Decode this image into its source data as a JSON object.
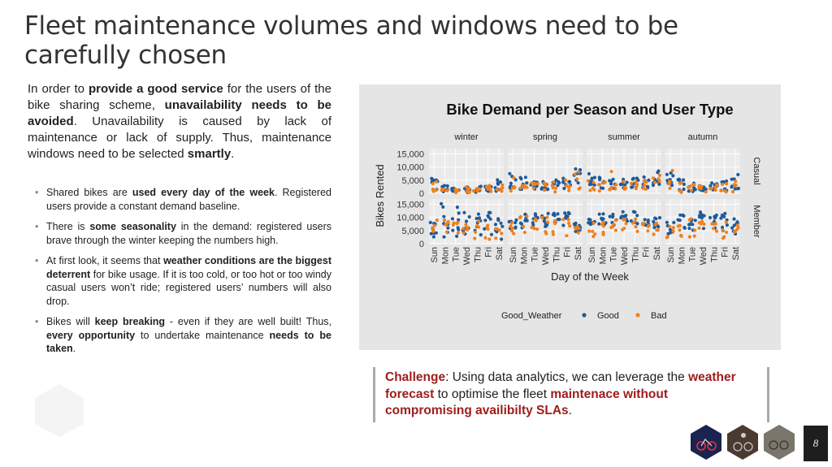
{
  "slide": {
    "title": "Fleet maintenance volumes and windows need to be carefully chosen",
    "page_number": "8"
  },
  "intro": {
    "p1": "In order to ",
    "b1": "provide a good service",
    "p2": " for the users of the bike sharing scheme, ",
    "b2": "unavailability needs to be avoided",
    "p3": ". Unavailability is caused by lack of maintenance or lack of supply. Thus, maintenance windows need to be selected ",
    "b3": "smartly",
    "p4": "."
  },
  "bullets": [
    {
      "t1": "Shared bikes are ",
      "b1": "used every day of the week",
      "t2": ". Registered users provide a constant demand baseline."
    },
    {
      "t1": "There is ",
      "b1": "some seasonality",
      "t2": " in the demand: registered users brave through the winter keeping the numbers high."
    },
    {
      "t1": "At first look, it seems that ",
      "b1": "weather conditions are the biggest deterrent",
      "t2": " for bike usage. If it is too cold, or too hot or too windy casual users won’t ride; registered users’ numbers will also drop."
    },
    {
      "t1": "Bikes will ",
      "b1": "keep breaking",
      "t2": " - even if they are well built! Thus, ",
      "b2": "every opportunity",
      "t3": " to undertake maintenance ",
      "b3": "needs to be taken",
      "t4": "."
    }
  ],
  "challenge": {
    "label": "Challenge",
    "t1": ": Using data analytics, we can leverage the ",
    "r1": "weather forecast",
    "t2": "  to optimise the fleet ",
    "r2": "maintenace without compromising availibilty SLAs",
    "t3": "."
  },
  "colors": {
    "good": "#1f5b99",
    "bad": "#f0801f",
    "panel_bg": "#e5e5e5",
    "facet_bg": "#ebebeb",
    "highlight": "#9e1c1c"
  },
  "icons": [
    "hexagon-decoration",
    "bike-thumbnail",
    "rider-thumbnail",
    "bicycles-thumbnail"
  ],
  "chart_data": {
    "type": "scatter",
    "title": "Bike Demand per Season and User Type",
    "xlabel": "Day of the Week",
    "ylabel": "Bikes Rented",
    "facet_columns": [
      "winter",
      "spring",
      "summer",
      "autumn"
    ],
    "facet_rows": [
      "Casual",
      "Member"
    ],
    "categories": [
      "Sun",
      "Mon",
      "Tue",
      "Wed",
      "Thu",
      "Fri",
      "Sat"
    ],
    "yticks": {
      "Casual": [
        "0",
        "5,000",
        "10,000",
        "15,000"
      ],
      "Member": [
        "0",
        "5,000",
        "10,000",
        "15,000"
      ]
    },
    "ylim": [
      0,
      17000
    ],
    "grid": true,
    "legend": {
      "title": "Good_Weather",
      "placement": "bottom",
      "entries": [
        {
          "name": "Good",
          "color": "#1f5b99"
        },
        {
          "name": "Bad",
          "color": "#f0801f"
        }
      ]
    },
    "panel_ranges": {
      "winter": {
        "Casual": {
          "Good": [
            [
              300,
              7000
            ],
            [
              200,
              3000
            ],
            [
              200,
              2600
            ],
            [
              300,
              2600
            ],
            [
              400,
              3200
            ],
            [
              400,
              3600
            ],
            [
              300,
              5500
            ]
          ],
          "Bad": [
            [
              200,
              5000
            ],
            [
              200,
              1800
            ],
            [
              200,
              1800
            ],
            [
              200,
              2400
            ],
            [
              200,
              2500
            ],
            [
              300,
              3000
            ],
            [
              300,
              5200
            ]
          ]
        },
        "Member": {
          "Good": [
            [
              1500,
              10000
            ],
            [
              2000,
              15500
            ],
            [
              2500,
              15000
            ],
            [
              3000,
              14500
            ],
            [
              3000,
              11500
            ],
            [
              2500,
              12000
            ],
            [
              1500,
              9500
            ]
          ],
          "Bad": [
            [
              1000,
              9500
            ],
            [
              1500,
              11000
            ],
            [
              1500,
              9500
            ],
            [
              2000,
              8500
            ],
            [
              1500,
              11500
            ],
            [
              1500,
              7500
            ],
            [
              1000,
              8000
            ]
          ]
        }
      },
      "spring": {
        "Casual": {
          "Good": [
            [
              2000,
              8500
            ],
            [
              1200,
              6500
            ],
            [
              1000,
              5200
            ],
            [
              1000,
              4800
            ],
            [
              1200,
              5200
            ],
            [
              1500,
              6500
            ],
            [
              2500,
              10500
            ]
          ],
          "Bad": [
            [
              800,
              7000
            ],
            [
              500,
              5500
            ],
            [
              500,
              4000
            ],
            [
              500,
              4000
            ],
            [
              500,
              4500
            ],
            [
              700,
              5500
            ],
            [
              800,
              9000
            ]
          ]
        },
        "Member": {
          "Good": [
            [
              5000,
              9500
            ],
            [
              6000,
              11500
            ],
            [
              6000,
              11500
            ],
            [
              6000,
              12000
            ],
            [
              6000,
              12000
            ],
            [
              5500,
              12000
            ],
            [
              4500,
              10500
            ]
          ],
          "Bad": [
            [
              2000,
              8500
            ],
            [
              3000,
              10500
            ],
            [
              2500,
              9500
            ],
            [
              3000,
              10500
            ],
            [
              3000,
              9500
            ],
            [
              3000,
              10000
            ],
            [
              2500,
              9000
            ]
          ]
        }
      },
      "summer": {
        "Casual": {
          "Good": [
            [
              3000,
              8000
            ],
            [
              1800,
              6500
            ],
            [
              1500,
              6000
            ],
            [
              1500,
              5500
            ],
            [
              1500,
              6000
            ],
            [
              2000,
              6500
            ],
            [
              3000,
              8500
            ]
          ],
          "Bad": [
            [
              1000,
              6500
            ],
            [
              800,
              5500
            ],
            [
              800,
              9000
            ],
            [
              800,
              4500
            ],
            [
              900,
              5000
            ],
            [
              1000,
              6000
            ],
            [
              1200,
              7000
            ]
          ]
        },
        "Member": {
          "Good": [
            [
              5500,
              9500
            ],
            [
              7000,
              11500
            ],
            [
              7000,
              12000
            ],
            [
              7500,
              12500
            ],
            [
              7500,
              12500
            ],
            [
              7000,
              12000
            ],
            [
              5000,
              10000
            ]
          ],
          "Bad": [
            [
              2500,
              8000
            ],
            [
              3000,
              10000
            ],
            [
              3000,
              9500
            ],
            [
              3500,
              10500
            ],
            [
              3500,
              10000
            ],
            [
              3000,
              9500
            ],
            [
              2500,
              8500
            ]
          ]
        }
      },
      "autumn": {
        "Casual": {
          "Good": [
            [
              1000,
              8000
            ],
            [
              800,
              5500
            ],
            [
              600,
              4000
            ],
            [
              600,
              3800
            ],
            [
              700,
              4200
            ],
            [
              900,
              5000
            ],
            [
              1500,
              7500
            ]
          ],
          "Bad": [
            [
              400,
              9000
            ],
            [
              300,
              4500
            ],
            [
              300,
              3500
            ],
            [
              300,
              3200
            ],
            [
              300,
              3500
            ],
            [
              400,
              4000
            ],
            [
              500,
              6500
            ]
          ]
        },
        "Member": {
          "Good": [
            [
              3000,
              9000
            ],
            [
              4000,
              11000
            ],
            [
              4500,
              11500
            ],
            [
              5000,
              12000
            ],
            [
              5000,
              12000
            ],
            [
              4500,
              11500
            ],
            [
              3000,
              9500
            ]
          ],
          "Bad": [
            [
              1500,
              7500
            ],
            [
              2000,
              9000
            ],
            [
              2000,
              9500
            ],
            [
              2500,
              9500
            ],
            [
              2500,
              9000
            ],
            [
              2000,
              8500
            ],
            [
              1500,
              7000
            ]
          ]
        }
      }
    }
  }
}
